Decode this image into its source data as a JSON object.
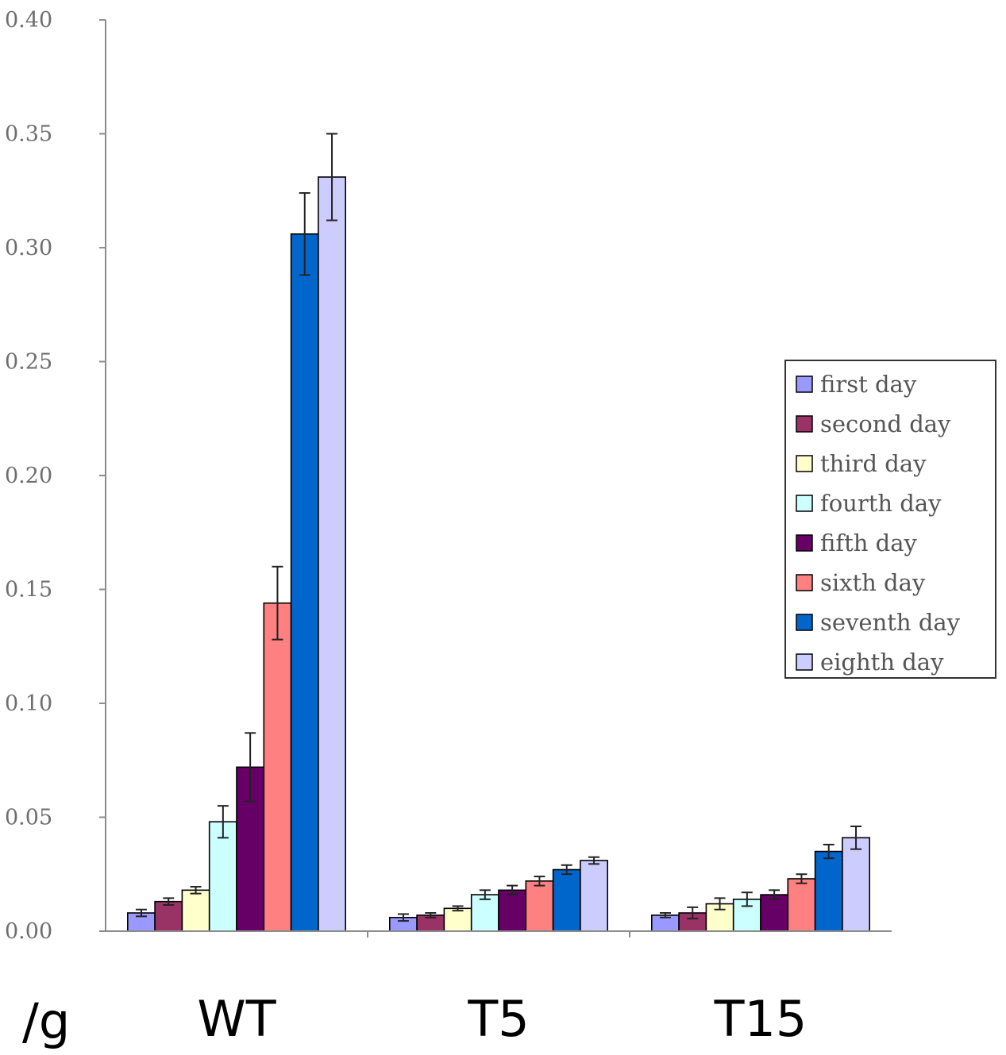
{
  "chart_data": {
    "type": "bar",
    "title": "",
    "xlabel": "",
    "ylabel": "/g",
    "ylim": [
      0,
      0.4
    ],
    "yticks": [
      "0.00",
      "0.05",
      "0.10",
      "0.15",
      "0.20",
      "0.25",
      "0.30",
      "0.35",
      "0.40"
    ],
    "grid": false,
    "legend_position": "right",
    "categories": [
      "WT",
      "T5",
      "T15"
    ],
    "series": [
      {
        "name": "first day",
        "color": "#9999ff",
        "values": [
          0.008,
          0.006,
          0.007
        ],
        "errors": [
          0.0015,
          0.0015,
          0.001
        ]
      },
      {
        "name": "second day",
        "color": "#993366",
        "values": [
          0.013,
          0.007,
          0.008
        ],
        "errors": [
          0.0015,
          0.001,
          0.0025
        ]
      },
      {
        "name": "third day",
        "color": "#ffffcc",
        "values": [
          0.018,
          0.01,
          0.012
        ],
        "errors": [
          0.0015,
          0.001,
          0.0025
        ]
      },
      {
        "name": "fourth day",
        "color": "#ccffff",
        "values": [
          0.048,
          0.016,
          0.014
        ],
        "errors": [
          0.007,
          0.002,
          0.003
        ]
      },
      {
        "name": "fifth day",
        "color": "#660066",
        "values": [
          0.072,
          0.018,
          0.016
        ],
        "errors": [
          0.015,
          0.002,
          0.002
        ]
      },
      {
        "name": "sixth day",
        "color": "#ff8080",
        "values": [
          0.144,
          0.022,
          0.023
        ],
        "errors": [
          0.016,
          0.002,
          0.002
        ]
      },
      {
        "name": "seventh day",
        "color": "#0066cc",
        "values": [
          0.306,
          0.027,
          0.035
        ],
        "errors": [
          0.018,
          0.002,
          0.003
        ]
      },
      {
        "name": "eighth day",
        "color": "#ccccff",
        "values": [
          0.331,
          0.031,
          0.041
        ],
        "errors": [
          0.019,
          0.0015,
          0.005
        ]
      }
    ]
  }
}
